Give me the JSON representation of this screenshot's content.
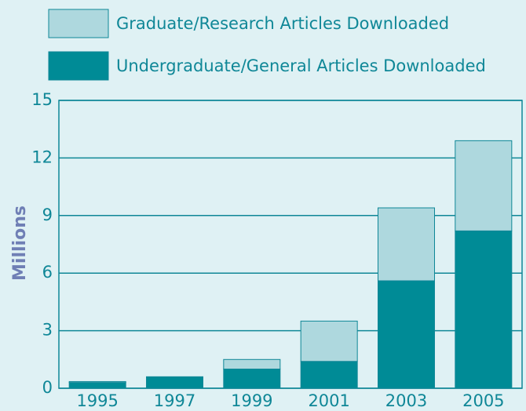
{
  "chart_data": {
    "type": "stacked_bar",
    "y_label": "Millions",
    "categories": [
      "1995",
      "1997",
      "1999",
      "2001",
      "2003",
      "2005"
    ],
    "series": [
      {
        "name": "Undergraduate/General Articles Downloaded",
        "color": "#008b96",
        "values": [
          0.3,
          0.6,
          1.0,
          1.4,
          5.6,
          8.2
        ]
      },
      {
        "name": "Graduate/Research Articles Downloaded",
        "color": "#aed8de",
        "values": [
          0.05,
          0,
          0.5,
          2.1,
          3.8,
          4.7
        ]
      }
    ],
    "ylim": [
      0,
      15
    ],
    "yticks": [
      0,
      3,
      6,
      9,
      12,
      15
    ],
    "grid": true
  }
}
